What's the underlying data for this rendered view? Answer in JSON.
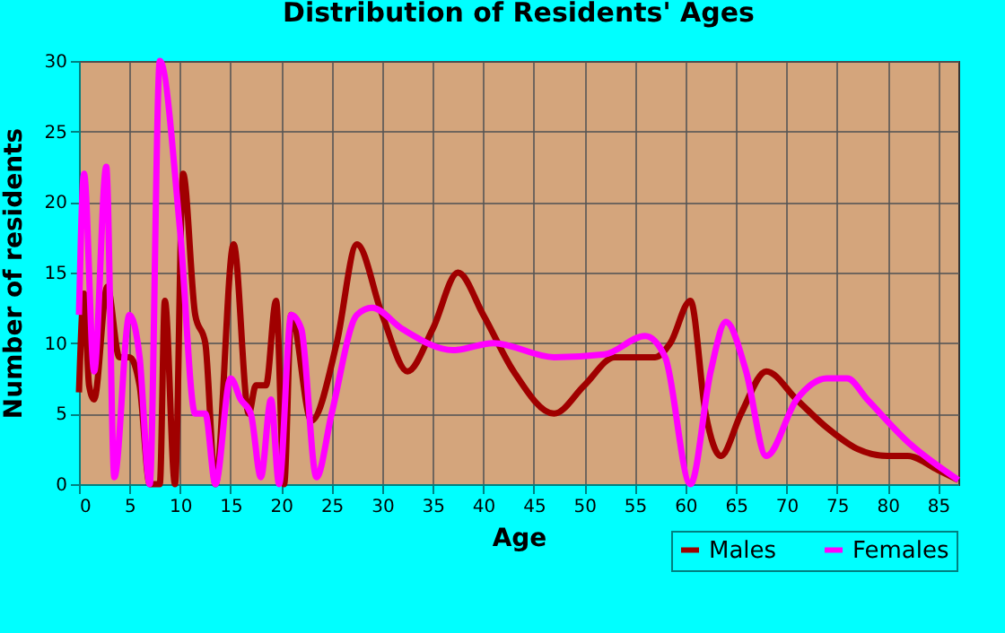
{
  "chart_data": {
    "type": "line",
    "title": "Distribution of Residents' Ages",
    "xlabel": "Age",
    "ylabel": "Number of residents",
    "xlim": [
      0,
      87
    ],
    "ylim": [
      0,
      30
    ],
    "xticks": [
      0,
      5,
      10,
      15,
      20,
      25,
      30,
      35,
      40,
      45,
      50,
      55,
      60,
      65,
      70,
      75,
      80,
      85
    ],
    "yticks": [
      0,
      5,
      10,
      15,
      20,
      25,
      30
    ],
    "grid": true,
    "legend": "bottom right",
    "series": [
      {
        "name": "Males",
        "color": "#a00000",
        "x": [
          0,
          0.5,
          1,
          1.5,
          2.8,
          4,
          5,
          6,
          7,
          8,
          8.5,
          9.5,
          10.3,
          11.5,
          12.5,
          13.5,
          15.3,
          16.8,
          17.5,
          18.5,
          19.5,
          20.3,
          21,
          23,
          25.5,
          27.5,
          30,
          32.5,
          35,
          37.5,
          40,
          43,
          47,
          50,
          53,
          57,
          58.5,
          60.5,
          62,
          63.5,
          65.5,
          68,
          71,
          74,
          77,
          80,
          82,
          85,
          87
        ],
        "values": [
          6.5,
          13.5,
          7,
          6,
          14,
          9,
          9,
          7,
          0,
          0,
          13,
          0,
          22,
          12,
          10,
          0,
          17,
          5,
          7,
          7,
          13,
          0,
          12,
          4.5,
          10,
          17,
          12,
          8,
          11,
          15,
          12,
          8,
          5,
          7,
          9,
          9,
          10,
          13,
          5,
          2,
          5,
          8,
          6,
          4,
          2.5,
          2,
          2,
          1,
          0.3
        ]
      },
      {
        "name": "Females",
        "color": "#ff00ff",
        "x": [
          0,
          0.5,
          1.5,
          2.7,
          3.5,
          5,
          6,
          7,
          8,
          10,
          11.5,
          12.5,
          13.5,
          15,
          16,
          17,
          18,
          19,
          19.8,
          21,
          22,
          23.5,
          25,
          27.5,
          29,
          32,
          37,
          41,
          47,
          52,
          56,
          58,
          60.5,
          62.5,
          64,
          66,
          68,
          71,
          74,
          76,
          78,
          82,
          87
        ],
        "values": [
          12,
          22,
          8,
          22.5,
          0.5,
          12,
          9,
          0,
          30,
          18,
          5,
          5,
          0,
          7.5,
          6,
          5,
          0.5,
          6,
          0,
          12,
          11,
          0.5,
          5,
          12,
          12.5,
          11,
          9.5,
          10,
          9,
          9.2,
          10.5,
          9,
          0,
          8,
          11.5,
          8,
          2,
          6,
          7.5,
          7.5,
          6,
          3,
          0.3
        ]
      }
    ]
  }
}
